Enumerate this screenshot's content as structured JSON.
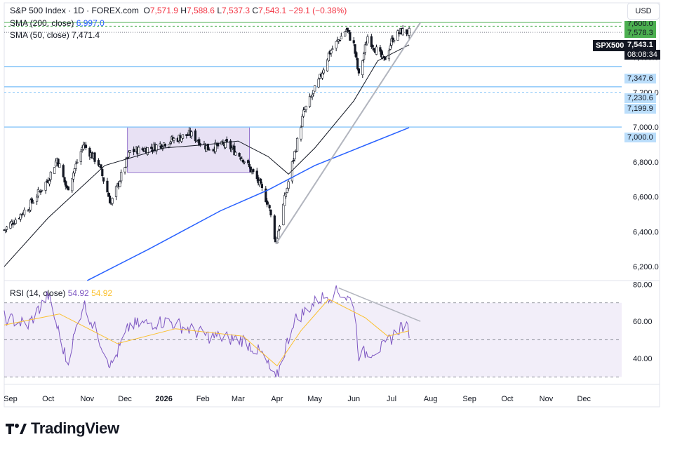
{
  "header": {
    "symbol_line": "S&P 500 Index · 1D · FOREX.com",
    "o_label": "O",
    "o_value": "7,571.9",
    "h_label": "H",
    "h_value": "7,588.6",
    "l_label": "L",
    "l_value": "7,537.3",
    "c_label": "C",
    "c_value": "7,543.1",
    "change": "−29.1 (−0.38%)",
    "change_color": "#f23645"
  },
  "indicators": {
    "sma200_label": "SMA (200, close)",
    "sma200_value": "6,997.0",
    "sma200_color": "#2962ff",
    "sma50_label": "SMA (50, close)",
    "sma50_value": "7,471.4",
    "sma50_color": "#131722",
    "rsi_label": "RSI (14, close)",
    "rsi_value": "54.92",
    "rsi_ma_value": "54.92",
    "rsi_color": "#7e57c2",
    "rsi_ma_color": "#fbc02d"
  },
  "currency_button": "USD",
  "symbol_badge": "SPX500",
  "price_tags": {
    "last_price": "7,543.1",
    "countdown": "08:08:34",
    "green_top": "7,600.0",
    "green_level": "7,578.3",
    "level_7347": "7,347.6",
    "level_7230": "7,230.6",
    "level_7199": "7,199.9",
    "level_7000": "7,000.0"
  },
  "brand": "TradingView",
  "chart_data": [
    {
      "type": "candlestick",
      "title": "S&P 500 Index · 1D · FOREX.com",
      "x_labels": [
        "Sep",
        "Oct",
        "Nov",
        "Dec",
        "2026",
        "Feb",
        "Mar",
        "Apr",
        "May",
        "Jun",
        "Jul",
        "Aug",
        "Sep",
        "Oct",
        "Nov",
        "Dec"
      ],
      "y_ticks": [
        "6,200.0",
        "6,400.0",
        "6,600.0",
        "6,800.0",
        "7,000.0",
        "7,200.0",
        "7,400.0"
      ],
      "ylim": [
        6120,
        7640
      ],
      "ohlc_last": {
        "open": 7571.9,
        "high": 7588.6,
        "low": 7537.3,
        "close": 7543.1
      },
      "close_path_keypoints": [
        {
          "x": "2025-08-27",
          "y": 6410
        },
        {
          "x": "2025-09-15",
          "y": 6540
        },
        {
          "x": "2025-10-01",
          "y": 6700
        },
        {
          "x": "2025-10-08",
          "y": 6820
        },
        {
          "x": "2025-10-16",
          "y": 6640
        },
        {
          "x": "2025-10-29",
          "y": 6900
        },
        {
          "x": "2025-11-10",
          "y": 6790
        },
        {
          "x": "2025-11-20",
          "y": 6560
        },
        {
          "x": "2025-12-05",
          "y": 6860
        },
        {
          "x": "2025-12-22",
          "y": 6880
        },
        {
          "x": "2026-01-05",
          "y": 6920
        },
        {
          "x": "2026-01-22",
          "y": 6960
        },
        {
          "x": "2026-02-05",
          "y": 6880
        },
        {
          "x": "2026-02-20",
          "y": 6900
        },
        {
          "x": "2026-03-05",
          "y": 6820
        },
        {
          "x": "2026-03-16",
          "y": 6700
        },
        {
          "x": "2026-03-25",
          "y": 6560
        },
        {
          "x": "2026-03-31",
          "y": 6340
        },
        {
          "x": "2026-04-08",
          "y": 6620
        },
        {
          "x": "2026-04-14",
          "y": 6820
        },
        {
          "x": "2026-04-22",
          "y": 7080
        },
        {
          "x": "2026-05-04",
          "y": 7260
        },
        {
          "x": "2026-05-12",
          "y": 7420
        },
        {
          "x": "2026-05-26",
          "y": 7560
        },
        {
          "x": "2026-06-01",
          "y": 7470
        },
        {
          "x": "2026-06-05",
          "y": 7290
        },
        {
          "x": "2026-06-12",
          "y": 7520
        },
        {
          "x": "2026-06-18",
          "y": 7450
        },
        {
          "x": "2026-06-25",
          "y": 7380
        },
        {
          "x": "2026-07-02",
          "y": 7510
        },
        {
          "x": "2026-07-09",
          "y": 7550
        },
        {
          "x": "2026-07-15",
          "y": 7543.1
        }
      ],
      "sma50_keypoints": [
        {
          "x": "2025-08-27",
          "y": 6200
        },
        {
          "x": "2025-10-01",
          "y": 6480
        },
        {
          "x": "2025-11-15",
          "y": 6780
        },
        {
          "x": "2026-01-01",
          "y": 6880
        },
        {
          "x": "2026-02-05",
          "y": 6900
        },
        {
          "x": "2026-03-01",
          "y": 6920
        },
        {
          "x": "2026-03-25",
          "y": 6830
        },
        {
          "x": "2026-04-10",
          "y": 6730
        },
        {
          "x": "2026-05-01",
          "y": 6880
        },
        {
          "x": "2026-06-01",
          "y": 7150
        },
        {
          "x": "2026-06-20",
          "y": 7380
        },
        {
          "x": "2026-07-15",
          "y": 7471.4
        }
      ],
      "sma200_keypoints": [
        {
          "x": "2025-11-01",
          "y": 6120
        },
        {
          "x": "2025-12-20",
          "y": 6300
        },
        {
          "x": "2026-02-15",
          "y": 6520
        },
        {
          "x": "2026-03-25",
          "y": 6640
        },
        {
          "x": "2026-05-01",
          "y": 6780
        },
        {
          "x": "2026-06-15",
          "y": 6910
        },
        {
          "x": "2026-07-15",
          "y": 6997.0
        }
      ],
      "horizontal_levels": [
        7600.0,
        7578.3,
        7347.6,
        7230.6,
        7199.9,
        7000.0
      ],
      "consolidation_box": {
        "x_start": "2025-12-03",
        "x_end": "2026-03-10",
        "y_low": 6740,
        "y_high": 7000
      },
      "trendline": {
        "x_start": "2026-03-31",
        "y_start": 6330,
        "x_end": "2026-07-24",
        "y_end": 7600
      }
    },
    {
      "type": "line",
      "title": "RSI (14, close)",
      "y_ticks": [
        "40.00",
        "60.00",
        "80.00"
      ],
      "ylim": [
        26,
        82
      ],
      "bands": {
        "upper": 70,
        "middle": 50,
        "lower": 30
      },
      "rsi_keypoints": [
        {
          "x": "2025-08-27",
          "y": 62
        },
        {
          "x": "2025-09-15",
          "y": 58
        },
        {
          "x": "2025-10-01",
          "y": 74
        },
        {
          "x": "2025-10-16",
          "y": 38
        },
        {
          "x": "2025-10-29",
          "y": 70
        },
        {
          "x": "2025-11-20",
          "y": 36
        },
        {
          "x": "2025-12-05",
          "y": 58
        },
        {
          "x": "2026-01-05",
          "y": 60
        },
        {
          "x": "2026-02-05",
          "y": 52
        },
        {
          "x": "2026-03-05",
          "y": 50
        },
        {
          "x": "2026-03-20",
          "y": 42
        },
        {
          "x": "2026-03-31",
          "y": 28
        },
        {
          "x": "2026-04-14",
          "y": 60
        },
        {
          "x": "2026-05-04",
          "y": 72
        },
        {
          "x": "2026-05-20",
          "y": 76
        },
        {
          "x": "2026-06-01",
          "y": 70
        },
        {
          "x": "2026-06-05",
          "y": 42
        },
        {
          "x": "2026-06-25",
          "y": 46
        },
        {
          "x": "2026-07-09",
          "y": 58
        },
        {
          "x": "2026-07-15",
          "y": 54.92
        }
      ],
      "rsi_ma_keypoints": [
        {
          "x": "2025-08-27",
          "y": 58
        },
        {
          "x": "2025-10-10",
          "y": 64
        },
        {
          "x": "2025-11-25",
          "y": 48
        },
        {
          "x": "2026-01-10",
          "y": 56
        },
        {
          "x": "2026-03-05",
          "y": 52
        },
        {
          "x": "2026-04-01",
          "y": 36
        },
        {
          "x": "2026-04-20",
          "y": 55
        },
        {
          "x": "2026-05-12",
          "y": 72
        },
        {
          "x": "2026-06-10",
          "y": 62
        },
        {
          "x": "2026-06-28",
          "y": 52
        },
        {
          "x": "2026-07-15",
          "y": 54.92
        }
      ],
      "trendline": {
        "x_start": "2026-05-20",
        "y_start": 78,
        "x_end": "2026-07-24",
        "y_end": 60
      }
    }
  ]
}
